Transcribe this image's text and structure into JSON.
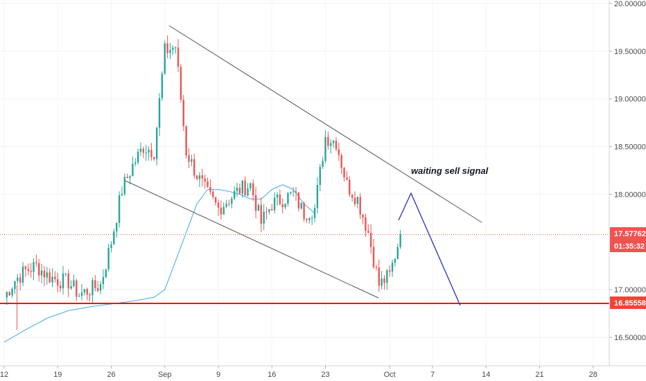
{
  "chart_data": {
    "type": "candlestick",
    "y_axis": {
      "ticks": [
        "20.00000",
        "19.50000",
        "19.00000",
        "18.50000",
        "18.00000",
        "17.00000",
        "16.50000"
      ],
      "tick_values": [
        20.0,
        19.5,
        19.0,
        18.5,
        18.0,
        17.0,
        16.5
      ],
      "range": [
        16.2,
        20.05
      ],
      "position": "right"
    },
    "x_axis": {
      "labels": [
        "12",
        "19",
        "26",
        "Sep",
        "9",
        "16",
        "23",
        "Oct",
        "7",
        "14",
        "21",
        "28"
      ],
      "label_index": [
        0,
        5,
        10,
        15,
        20,
        25,
        30,
        36,
        40,
        45,
        50,
        55
      ]
    },
    "price_tags": {
      "current_price": "17.57762",
      "countdown": "01:35:32",
      "support_level": "16.85558",
      "current_price_value": 17.57762,
      "support_value": 16.85558
    },
    "annotation": "waiting sell signal",
    "colors": {
      "up": "#26a69a",
      "down": "#ef5350",
      "ma": "#5db4e8",
      "support": "#ff0000",
      "trend": "#555555",
      "projection": "#2e2eb8",
      "tag_bg": "#f44336"
    },
    "candles_close": [
      16.92,
      17.1,
      17.2,
      17.25,
      17.15,
      17.1,
      17.08,
      16.95,
      17.0,
      17.05,
      17.5,
      18.05,
      18.3,
      18.5,
      18.45,
      19.5,
      19.55,
      18.45,
      18.2,
      18.0,
      17.85,
      17.95,
      18.05,
      18.1,
      17.7,
      17.9,
      17.95,
      18.0,
      17.8,
      17.85,
      18.6,
      18.55,
      18.1,
      17.95,
      17.6,
      17.05,
      17.15,
      17.58
    ],
    "moving_average": [
      16.45,
      16.58,
      16.7,
      16.78,
      16.82,
      16.85,
      16.88,
      16.92,
      17.0,
      17.3,
      17.6,
      17.9,
      18.05,
      18.05,
      18.03,
      18.0,
      17.95,
      17.95,
      18.05,
      18.1,
      18.05,
      17.9,
      17.8
    ],
    "ma_label_index": [
      0,
      2,
      4,
      6,
      8,
      10,
      12,
      14,
      15,
      16,
      17,
      18,
      19,
      20,
      21,
      22,
      23,
      24,
      25,
      26,
      27,
      28,
      29
    ]
  }
}
